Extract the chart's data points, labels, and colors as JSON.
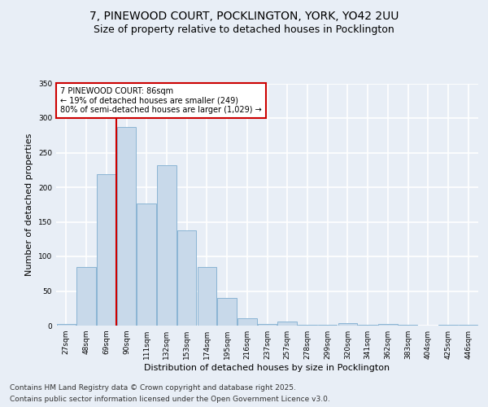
{
  "title_line1": "7, PINEWOOD COURT, POCKLINGTON, YORK, YO42 2UU",
  "title_line2": "Size of property relative to detached houses in Pocklington",
  "xlabel": "Distribution of detached houses by size in Pocklington",
  "ylabel": "Number of detached properties",
  "categories": [
    "27sqm",
    "48sqm",
    "69sqm",
    "90sqm",
    "111sqm",
    "132sqm",
    "153sqm",
    "174sqm",
    "195sqm",
    "216sqm",
    "237sqm",
    "257sqm",
    "278sqm",
    "299sqm",
    "320sqm",
    "341sqm",
    "362sqm",
    "383sqm",
    "404sqm",
    "425sqm",
    "446sqm"
  ],
  "values": [
    2,
    85,
    219,
    287,
    176,
    232,
    138,
    85,
    40,
    11,
    2,
    6,
    1,
    1,
    3,
    1,
    2,
    1,
    0,
    1,
    1
  ],
  "bar_color": "#c8d9ea",
  "bar_edge_color": "#8ab4d4",
  "vline_x_index": 2.5,
  "annotation_text": "7 PINEWOOD COURT: 86sqm\n← 19% of detached houses are smaller (249)\n80% of semi-detached houses are larger (1,029) →",
  "vline_color": "#cc0000",
  "annotation_box_edge_color": "#cc0000",
  "annotation_box_face_color": "#ffffff",
  "ylim": [
    0,
    350
  ],
  "yticks": [
    0,
    50,
    100,
    150,
    200,
    250,
    300,
    350
  ],
  "footer_line1": "Contains HM Land Registry data © Crown copyright and database right 2025.",
  "footer_line2": "Contains public sector information licensed under the Open Government Licence v3.0.",
  "background_color": "#e8eef6",
  "plot_background_color": "#e8eef6",
  "grid_color": "#ffffff",
  "title_fontsize": 10,
  "subtitle_fontsize": 9,
  "axis_label_fontsize": 8,
  "tick_fontsize": 6.5,
  "annotation_fontsize": 7,
  "footer_fontsize": 6.5
}
